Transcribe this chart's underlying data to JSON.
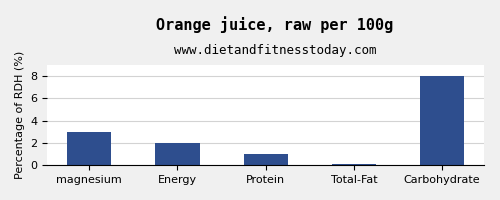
{
  "title": "Orange juice, raw per 100g",
  "subtitle": "www.dietandfitnesstoday.com",
  "categories": [
    "magnesium",
    "Energy",
    "Protein",
    "Total-Fat",
    "Carbohydrate"
  ],
  "values": [
    3.0,
    2.0,
    1.0,
    0.1,
    8.0
  ],
  "bar_color": "#2e4e8e",
  "ylabel": "Percentage of RDH (%)",
  "ylim": [
    0,
    9
  ],
  "yticks": [
    0,
    2,
    4,
    6,
    8
  ],
  "background_color": "#f0f0f0",
  "plot_bg_color": "#ffffff",
  "title_fontsize": 11,
  "subtitle_fontsize": 9,
  "tick_fontsize": 8,
  "ylabel_fontsize": 8
}
